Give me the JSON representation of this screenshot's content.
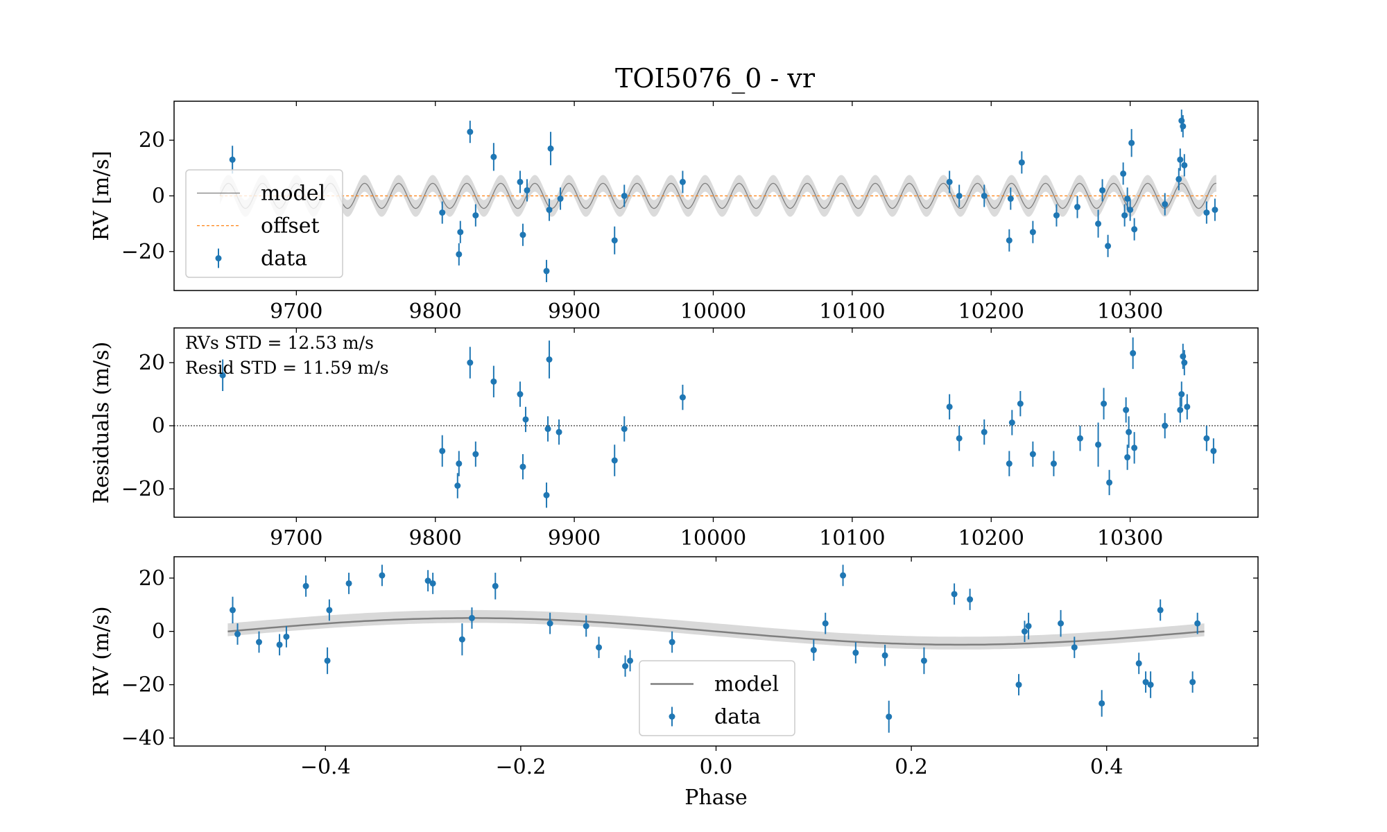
{
  "title": "TOI5076_0 - vr",
  "colors": {
    "data": "#1f77b4",
    "model_line": "#7f7f7f",
    "model_band": "#cfcfcf",
    "offset": "#ff7f0e",
    "axis": "#000000"
  },
  "chart_data": [
    {
      "type": "scatter",
      "name": "rv-time",
      "ylabel": "RV [m/s]",
      "xlabel": "",
      "xlim": [
        9612,
        10392
      ],
      "ylim": [
        -34,
        34
      ],
      "xticks": [
        9700,
        9800,
        9900,
        10000,
        10100,
        10200,
        10300
      ],
      "yticks": [
        -20,
        0,
        20
      ],
      "legend": {
        "placement": "left",
        "entries": [
          "model",
          "offset",
          "data"
        ]
      },
      "offset_value": 0,
      "model": {
        "x_start": 9645,
        "x_end": 10362,
        "amplitude": 4.5,
        "period": 24.5,
        "band": 3
      },
      "points": [
        [
          9654,
          13,
          5
        ],
        [
          9805,
          -6,
          4
        ],
        [
          9817,
          -21,
          4
        ],
        [
          9818,
          -13,
          4
        ],
        [
          9825,
          23,
          4
        ],
        [
          9829,
          -7,
          4
        ],
        [
          9842,
          14,
          5
        ],
        [
          9861,
          5,
          4
        ],
        [
          9863,
          -14,
          4
        ],
        [
          9866,
          2,
          4
        ],
        [
          9880,
          -27,
          4
        ],
        [
          9882,
          -5,
          4
        ],
        [
          9883,
          17,
          6
        ],
        [
          9890,
          -1,
          4
        ],
        [
          9929,
          -16,
          5
        ],
        [
          9936,
          0,
          4
        ],
        [
          9978,
          5,
          4
        ],
        [
          10170,
          5,
          4
        ],
        [
          10177,
          0,
          4
        ],
        [
          10195,
          0,
          4
        ],
        [
          10213,
          -16,
          4
        ],
        [
          10214,
          -1,
          4
        ],
        [
          10222,
          12,
          4
        ],
        [
          10230,
          -13,
          4
        ],
        [
          10247,
          -7,
          4
        ],
        [
          10262,
          -4,
          4
        ],
        [
          10277,
          -10,
          5
        ],
        [
          10280,
          2,
          4
        ],
        [
          10284,
          -18,
          4
        ],
        [
          10295,
          8,
          4
        ],
        [
          10296,
          -7,
          4
        ],
        [
          10298,
          -1,
          4
        ],
        [
          10300,
          -5,
          4
        ],
        [
          10301,
          19,
          5
        ],
        [
          10303,
          -12,
          4
        ],
        [
          10325,
          -3,
          4
        ],
        [
          10335,
          6,
          4
        ],
        [
          10336,
          13,
          4
        ],
        [
          10337,
          27,
          4
        ],
        [
          10338,
          25,
          4
        ],
        [
          10339,
          11,
          4
        ],
        [
          10355,
          -6,
          4
        ],
        [
          10361,
          -5,
          4
        ]
      ]
    },
    {
      "type": "scatter",
      "name": "residuals-time",
      "ylabel": "Residuals (m/s)",
      "xlabel": "",
      "xlim": [
        9612,
        10392
      ],
      "ylim": [
        -29,
        31
      ],
      "xticks": [
        9700,
        9800,
        9900,
        10000,
        10100,
        10200,
        10300
      ],
      "yticks": [
        -20,
        0,
        20
      ],
      "annotations": [
        "RVs STD = 12.53 m/s",
        "Resid STD = 11.59 m/s"
      ],
      "points": [
        [
          9647,
          16,
          5
        ],
        [
          9805,
          -8,
          5
        ],
        [
          9816,
          -19,
          4
        ],
        [
          9817,
          -12,
          4
        ],
        [
          9825,
          20,
          5
        ],
        [
          9829,
          -9,
          4
        ],
        [
          9842,
          14,
          5
        ],
        [
          9861,
          10,
          4
        ],
        [
          9863,
          -13,
          4
        ],
        [
          9865,
          2,
          4
        ],
        [
          9880,
          -22,
          4
        ],
        [
          9881,
          -1,
          4
        ],
        [
          9882,
          21,
          6
        ],
        [
          9889,
          -2,
          4
        ],
        [
          9929,
          -11,
          5
        ],
        [
          9936,
          -1,
          4
        ],
        [
          9978,
          9,
          4
        ],
        [
          10170,
          6,
          4
        ],
        [
          10177,
          -4,
          4
        ],
        [
          10195,
          -2,
          4
        ],
        [
          10213,
          -12,
          4
        ],
        [
          10215,
          1,
          4
        ],
        [
          10221,
          7,
          4
        ],
        [
          10230,
          -9,
          4
        ],
        [
          10245,
          -12,
          4
        ],
        [
          10264,
          -4,
          4
        ],
        [
          10277,
          -6,
          7
        ],
        [
          10281,
          7,
          5
        ],
        [
          10285,
          -18,
          4
        ],
        [
          10297,
          5,
          4
        ],
        [
          10298,
          -10,
          4
        ],
        [
          10299,
          -2,
          5
        ],
        [
          10302,
          23,
          5
        ],
        [
          10303,
          -7,
          5
        ],
        [
          10325,
          0,
          4
        ],
        [
          10336,
          5,
          4
        ],
        [
          10337,
          10,
          4
        ],
        [
          10338,
          22,
          4
        ],
        [
          10339,
          20,
          4
        ],
        [
          10341,
          6,
          4
        ],
        [
          10355,
          -4,
          4
        ],
        [
          10360,
          -8,
          4
        ]
      ]
    },
    {
      "type": "scatter",
      "name": "rv-phase",
      "ylabel": "RV (m/s)",
      "xlabel": "Phase",
      "xlim": [
        -0.555,
        0.555
      ],
      "ylim": [
        -43,
        28
      ],
      "xticks": [
        -0.4,
        -0.2,
        0.0,
        0.2,
        0.4
      ],
      "xticklabels": [
        "−0.4",
        "−0.2",
        "0.0",
        "0.2",
        "0.4"
      ],
      "yticks": [
        -40,
        -20,
        0,
        20
      ],
      "legend": {
        "placement": "lower center",
        "entries": [
          "model",
          "data"
        ]
      },
      "model": {
        "x_start": -0.5,
        "x_end": 0.5,
        "amplitude": 5,
        "band": 3
      },
      "points": [
        [
          -0.495,
          8,
          5
        ],
        [
          -0.49,
          -1,
          4
        ],
        [
          -0.468,
          -4,
          4
        ],
        [
          -0.447,
          -5,
          4
        ],
        [
          -0.44,
          -2,
          4
        ],
        [
          -0.42,
          17,
          4
        ],
        [
          -0.398,
          -11,
          5
        ],
        [
          -0.396,
          8,
          4
        ],
        [
          -0.376,
          18,
          4
        ],
        [
          -0.342,
          21,
          4
        ],
        [
          -0.295,
          19,
          4
        ],
        [
          -0.29,
          18,
          4
        ],
        [
          -0.26,
          -3,
          6
        ],
        [
          -0.25,
          5,
          4
        ],
        [
          -0.226,
          17,
          5
        ],
        [
          -0.17,
          3,
          4
        ],
        [
          -0.133,
          2,
          4
        ],
        [
          -0.12,
          -6,
          4
        ],
        [
          -0.093,
          -13,
          4
        ],
        [
          -0.088,
          -11,
          4
        ],
        [
          -0.045,
          -4,
          4
        ],
        [
          0.1,
          -7,
          4
        ],
        [
          0.112,
          3,
          4
        ],
        [
          0.13,
          21,
          4
        ],
        [
          0.143,
          -8,
          4
        ],
        [
          0.173,
          -9,
          4
        ],
        [
          0.177,
          -32,
          6
        ],
        [
          0.213,
          -11,
          5
        ],
        [
          0.244,
          14,
          4
        ],
        [
          0.26,
          12,
          4
        ],
        [
          0.31,
          -20,
          4
        ],
        [
          0.316,
          0,
          4
        ],
        [
          0.32,
          2,
          5
        ],
        [
          0.353,
          3,
          5
        ],
        [
          0.367,
          -6,
          4
        ],
        [
          0.395,
          -27,
          5
        ],
        [
          0.433,
          -12,
          4
        ],
        [
          0.44,
          -19,
          4
        ],
        [
          0.445,
          -20,
          5
        ],
        [
          0.455,
          8,
          4
        ],
        [
          0.488,
          -19,
          4
        ],
        [
          0.493,
          3,
          4
        ]
      ]
    }
  ]
}
